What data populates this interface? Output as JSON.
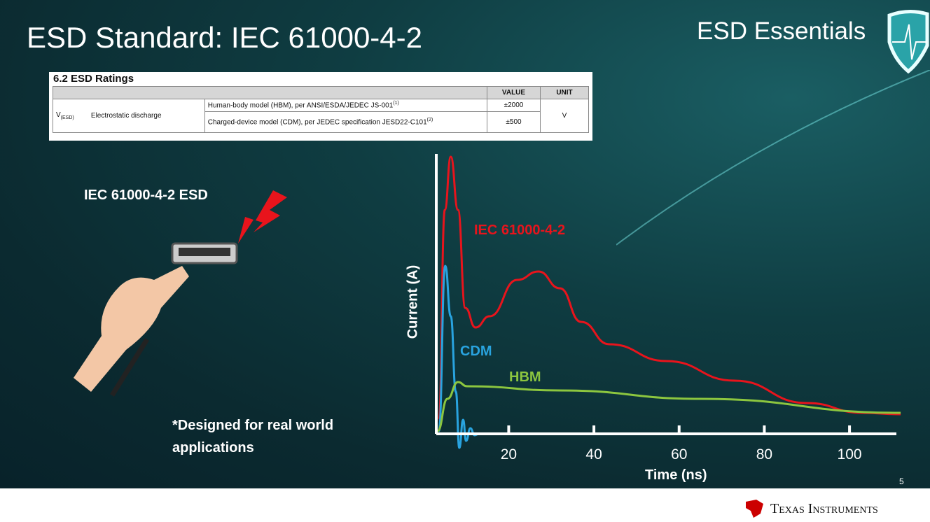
{
  "title": "ESD Standard: IEC 61000-4-2",
  "brand": "ESD Essentials",
  "table": {
    "heading": "6.2   ESD Ratings",
    "headers": [
      "VALUE",
      "UNIT"
    ],
    "symbol": "V",
    "symbol_sub": "(ESD)",
    "parameter": "Electrostatic discharge",
    "rows": [
      {
        "condition": "Human-body model (HBM), per ANSI/ESDA/JEDEC JS-001",
        "note": "(1)",
        "value": "±2000"
      },
      {
        "condition": "Charged-device model (CDM), per JEDEC specification JESD22-C101",
        "note": "(2)",
        "value": "±500"
      }
    ],
    "unit": "V"
  },
  "left_label": "IEC 61000-4-2 ESD",
  "note_line1": "*Designed for real world",
  "note_line2": "applications",
  "slide_number": "5",
  "footer_logo": "Texas Instruments",
  "chart_data": {
    "type": "line",
    "xlabel": "Time (ns)",
    "ylabel": "Current (A)",
    "xlim": [
      3,
      111
    ],
    "ylim": [
      0,
      100
    ],
    "xticks": [
      20,
      40,
      60,
      80,
      100
    ],
    "grid": false,
    "series": [
      {
        "name": "IEC 61000-4-2",
        "color": "#e8141c",
        "x": [
          3.6,
          5,
          6.4,
          8.1,
          9.8,
          12.2,
          15.5,
          22,
          27,
          32,
          37,
          43.6,
          57,
          73,
          90,
          103,
          112
        ],
        "y": [
          5,
          80,
          99,
          80,
          45,
          38,
          42,
          55,
          58,
          52,
          40,
          32,
          26,
          19,
          11,
          7.5,
          7
        ]
      },
      {
        "name": "CDM",
        "color": "#29a3df",
        "x": [
          3.6,
          5.1,
          6.4,
          7.6,
          8.4,
          9.3,
          10,
          11,
          12,
          13
        ],
        "y": [
          1,
          60,
          42,
          15,
          -5,
          5,
          -2.5,
          2,
          -0.5,
          0
        ]
      },
      {
        "name": "HBM",
        "color": "#8cc63f",
        "x": [
          3.3,
          5.6,
          8.1,
          10.2,
          32,
          65,
          112
        ],
        "y": [
          1,
          12.5,
          18.5,
          17,
          15.5,
          12.5,
          7.5
        ]
      }
    ]
  }
}
